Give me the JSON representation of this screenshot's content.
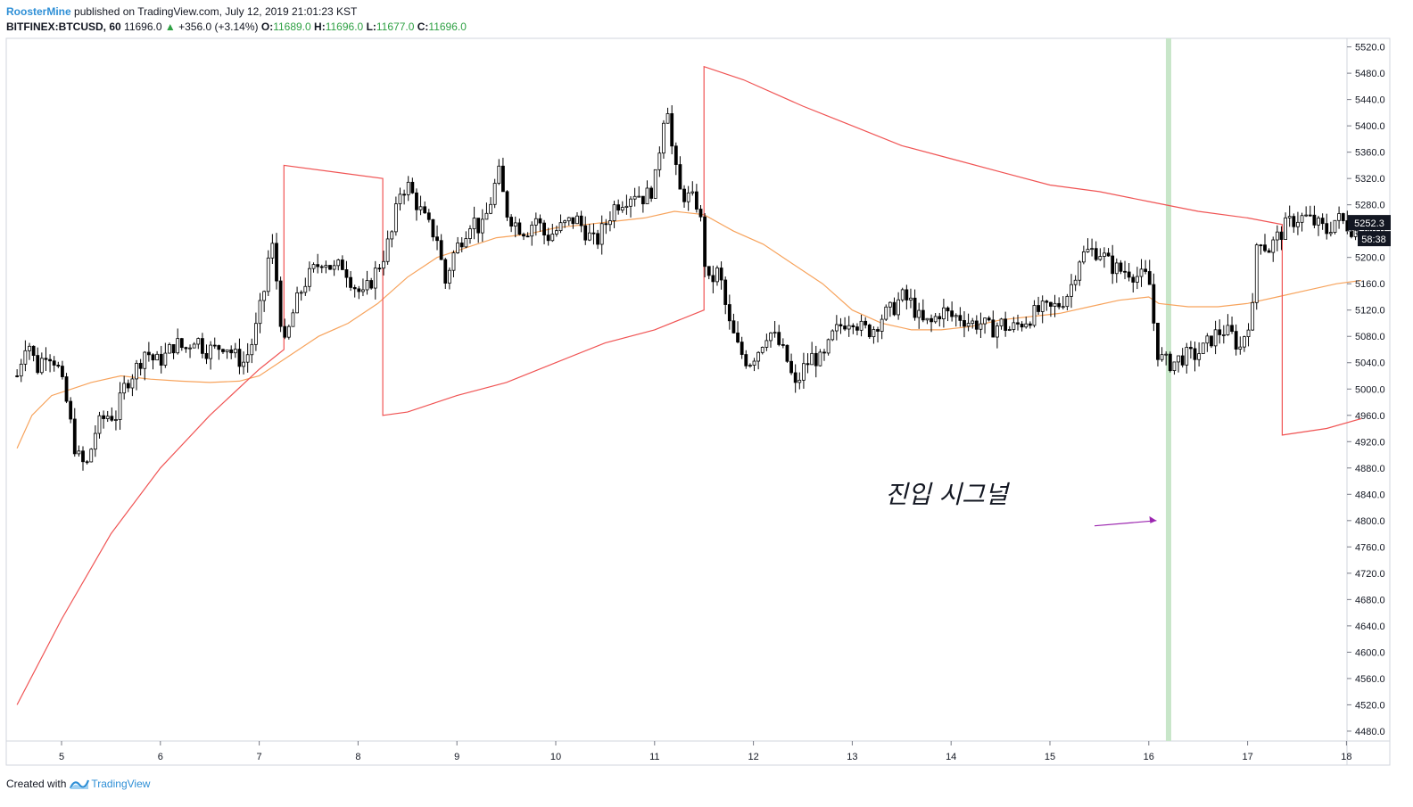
{
  "header": {
    "author": "RoosterMine",
    "published_text": "published on TradingView.com, July 12, 2019 21:01:23 KST",
    "symbol": "BITFINEX:BTCUSD, 60",
    "last": "11696.0",
    "change_arrow": "▲",
    "change": "+356.0 (+3.14%)",
    "o_label": "O:",
    "o_value": "11689.0",
    "h_label": "H:",
    "h_value": "11696.0",
    "l_label": "L:",
    "l_value": "11677.0",
    "c_label": "C:",
    "c_value": "11696.0"
  },
  "footer": {
    "created_with": "Created with",
    "brand": "TradingView",
    "brand_icon": "tradingview-logo-icon"
  },
  "annotation": {
    "text": "진입 시그널",
    "arrow_color": "#9c27b0"
  },
  "colors": {
    "up_candle": "#ffffff",
    "down_candle": "#000000",
    "wick": "#000000",
    "ma_line": "#f7a35c",
    "envelope_line": "#f05454",
    "highlight": "#c8e6c9",
    "grid_border": "#d1d4dc",
    "label_bg": "#131722"
  },
  "chart_data": {
    "type": "candlestick",
    "x_tick_labels": [
      "5",
      "6",
      "7",
      "8",
      "9",
      "10",
      "11",
      "12",
      "13",
      "14",
      "15",
      "16",
      "17",
      "18"
    ],
    "y_ticks": [
      4480,
      4520,
      4560,
      4600,
      4640,
      4680,
      4720,
      4760,
      4800,
      4840,
      4880,
      4920,
      4960,
      5000,
      5040,
      5080,
      5120,
      5160,
      5200,
      5240,
      5280,
      5320,
      5360,
      5400,
      5440,
      5480,
      5520
    ],
    "ylim": [
      4465,
      5533
    ],
    "price_label": "5252.3",
    "countdown_label": "58:38",
    "highlight_x": 16.2,
    "close_path": [
      [
        4.55,
        5020
      ],
      [
        4.65,
        5080
      ],
      [
        4.75,
        5030
      ],
      [
        4.85,
        5060
      ],
      [
        4.95,
        5040
      ],
      [
        5.05,
        4980
      ],
      [
        5.15,
        4900
      ],
      [
        5.25,
        4880
      ],
      [
        5.35,
        4940
      ],
      [
        5.45,
        4960
      ],
      [
        5.55,
        4960
      ],
      [
        5.65,
        5010
      ],
      [
        5.75,
        5030
      ],
      [
        5.85,
        5060
      ],
      [
        5.95,
        5040
      ],
      [
        6.05,
        5050
      ],
      [
        6.15,
        5070
      ],
      [
        6.25,
        5060
      ],
      [
        6.35,
        5080
      ],
      [
        6.45,
        5060
      ],
      [
        6.55,
        5060
      ],
      [
        6.65,
        5070
      ],
      [
        6.75,
        5050
      ],
      [
        6.85,
        5040
      ],
      [
        6.95,
        5080
      ],
      [
        7.05,
        5150
      ],
      [
        7.12,
        5230
      ],
      [
        7.18,
        5160
      ],
      [
        7.25,
        5060
      ],
      [
        7.35,
        5120
      ],
      [
        7.45,
        5160
      ],
      [
        7.55,
        5180
      ],
      [
        7.65,
        5200
      ],
      [
        7.75,
        5180
      ],
      [
        7.85,
        5190
      ],
      [
        7.95,
        5160
      ],
      [
        8.05,
        5140
      ],
      [
        8.15,
        5170
      ],
      [
        8.25,
        5200
      ],
      [
        8.35,
        5240
      ],
      [
        8.42,
        5300
      ],
      [
        8.5,
        5310
      ],
      [
        8.6,
        5280
      ],
      [
        8.7,
        5250
      ],
      [
        8.8,
        5230
      ],
      [
        8.88,
        5160
      ],
      [
        8.95,
        5200
      ],
      [
        9.05,
        5230
      ],
      [
        9.15,
        5260
      ],
      [
        9.25,
        5240
      ],
      [
        9.35,
        5290
      ],
      [
        9.42,
        5330
      ],
      [
        9.5,
        5270
      ],
      [
        9.6,
        5250
      ],
      [
        9.7,
        5240
      ],
      [
        9.8,
        5260
      ],
      [
        9.9,
        5230
      ],
      [
        10.0,
        5240
      ],
      [
        10.1,
        5250
      ],
      [
        10.2,
        5260
      ],
      [
        10.3,
        5240
      ],
      [
        10.4,
        5220
      ],
      [
        10.5,
        5250
      ],
      [
        10.6,
        5280
      ],
      [
        10.7,
        5290
      ],
      [
        10.8,
        5300
      ],
      [
        10.9,
        5290
      ],
      [
        11.0,
        5310
      ],
      [
        11.08,
        5400
      ],
      [
        11.12,
        5450
      ],
      [
        11.18,
        5360
      ],
      [
        11.25,
        5300
      ],
      [
        11.35,
        5290
      ],
      [
        11.45,
        5280
      ],
      [
        11.5,
        5200
      ],
      [
        11.55,
        5160
      ],
      [
        11.65,
        5180
      ],
      [
        11.75,
        5100
      ],
      [
        11.85,
        5060
      ],
      [
        11.95,
        5040
      ],
      [
        12.05,
        5060
      ],
      [
        12.15,
        5090
      ],
      [
        12.25,
        5070
      ],
      [
        12.35,
        5040
      ],
      [
        12.42,
        5000
      ],
      [
        12.5,
        5030
      ],
      [
        12.6,
        5050
      ],
      [
        12.7,
        5040
      ],
      [
        12.8,
        5080
      ],
      [
        12.9,
        5100
      ],
      [
        13.0,
        5110
      ],
      [
        13.1,
        5090
      ],
      [
        13.2,
        5090
      ],
      [
        13.3,
        5110
      ],
      [
        13.4,
        5120
      ],
      [
        13.5,
        5140
      ],
      [
        13.6,
        5130
      ],
      [
        13.7,
        5100
      ],
      [
        13.8,
        5100
      ],
      [
        13.9,
        5120
      ],
      [
        14.0,
        5110
      ],
      [
        14.1,
        5110
      ],
      [
        14.2,
        5100
      ],
      [
        14.3,
        5100
      ],
      [
        14.4,
        5090
      ],
      [
        14.5,
        5100
      ],
      [
        14.6,
        5090
      ],
      [
        14.7,
        5100
      ],
      [
        14.8,
        5110
      ],
      [
        14.9,
        5120
      ],
      [
        15.0,
        5120
      ],
      [
        15.1,
        5130
      ],
      [
        15.2,
        5150
      ],
      [
        15.3,
        5200
      ],
      [
        15.4,
        5210
      ],
      [
        15.5,
        5210
      ],
      [
        15.6,
        5190
      ],
      [
        15.7,
        5180
      ],
      [
        15.8,
        5180
      ],
      [
        15.9,
        5170
      ],
      [
        16.0,
        5170
      ],
      [
        16.08,
        5060
      ],
      [
        16.15,
        5040
      ],
      [
        16.25,
        5040
      ],
      [
        16.35,
        5050
      ],
      [
        16.45,
        5050
      ],
      [
        16.55,
        5060
      ],
      [
        16.65,
        5080
      ],
      [
        16.75,
        5090
      ],
      [
        16.85,
        5080
      ],
      [
        16.92,
        5060
      ],
      [
        17.0,
        5100
      ],
      [
        17.05,
        5120
      ],
      [
        17.1,
        5240
      ],
      [
        17.2,
        5210
      ],
      [
        17.3,
        5230
      ],
      [
        17.4,
        5250
      ],
      [
        17.5,
        5260
      ],
      [
        17.6,
        5260
      ],
      [
        17.7,
        5250
      ],
      [
        17.8,
        5240
      ],
      [
        17.9,
        5260
      ],
      [
        18.0,
        5250
      ],
      [
        18.1,
        5240
      ]
    ],
    "series": [
      {
        "name": "",
        "style": "ma",
        "points": [
          [
            4.55,
            4910
          ],
          [
            4.7,
            4960
          ],
          [
            4.9,
            4990
          ],
          [
            5.1,
            5000
          ],
          [
            5.3,
            5010
          ],
          [
            5.6,
            5020
          ],
          [
            5.9,
            5015
          ],
          [
            6.2,
            5012
          ],
          [
            6.5,
            5010
          ],
          [
            6.8,
            5012
          ],
          [
            7.0,
            5020
          ],
          [
            7.3,
            5050
          ],
          [
            7.6,
            5080
          ],
          [
            7.9,
            5100
          ],
          [
            8.2,
            5130
          ],
          [
            8.5,
            5170
          ],
          [
            8.8,
            5200
          ],
          [
            9.1,
            5215
          ],
          [
            9.4,
            5230
          ],
          [
            9.7,
            5235
          ],
          [
            10.0,
            5245
          ],
          [
            10.3,
            5250
          ],
          [
            10.6,
            5255
          ],
          [
            10.9,
            5260
          ],
          [
            11.2,
            5270
          ],
          [
            11.5,
            5265
          ],
          [
            11.8,
            5240
          ],
          [
            12.1,
            5220
          ],
          [
            12.4,
            5190
          ],
          [
            12.7,
            5160
          ],
          [
            13.0,
            5120
          ],
          [
            13.3,
            5100
          ],
          [
            13.6,
            5090
          ],
          [
            13.9,
            5090
          ],
          [
            14.2,
            5095
          ],
          [
            14.5,
            5105
          ],
          [
            14.8,
            5110
          ],
          [
            15.1,
            5115
          ],
          [
            15.4,
            5125
          ],
          [
            15.7,
            5135
          ],
          [
            16.0,
            5140
          ],
          [
            16.1,
            5130
          ],
          [
            16.4,
            5125
          ],
          [
            16.7,
            5125
          ],
          [
            17.0,
            5130
          ],
          [
            17.3,
            5140
          ],
          [
            17.6,
            5150
          ],
          [
            17.9,
            5160
          ],
          [
            18.15,
            5165
          ]
        ]
      },
      {
        "name": "",
        "style": "envelope",
        "points": [
          [
            4.55,
            4520
          ],
          [
            5.0,
            4650
          ],
          [
            5.5,
            4780
          ],
          [
            6.0,
            4880
          ],
          [
            6.5,
            4960
          ],
          [
            7.0,
            5030
          ],
          [
            7.25,
            5060
          ],
          [
            7.25,
            5340
          ],
          [
            8.25,
            5320
          ],
          [
            8.25,
            4960
          ],
          [
            8.5,
            4965
          ],
          [
            9.0,
            4990
          ],
          [
            9.5,
            5010
          ],
          [
            10.0,
            5040
          ],
          [
            10.5,
            5070
          ],
          [
            11.0,
            5090
          ],
          [
            11.5,
            5120
          ],
          [
            11.5,
            5490
          ],
          [
            11.9,
            5470
          ],
          [
            12.5,
            5430
          ],
          [
            13.0,
            5400
          ],
          [
            13.5,
            5370
          ],
          [
            14.0,
            5350
          ],
          [
            14.5,
            5330
          ],
          [
            15.0,
            5310
          ],
          [
            15.5,
            5300
          ],
          [
            16.0,
            5285
          ],
          [
            16.5,
            5270
          ],
          [
            17.0,
            5260
          ],
          [
            17.35,
            5250
          ],
          [
            17.35,
            4930
          ],
          [
            17.8,
            4940
          ],
          [
            18.15,
            4955
          ]
        ]
      }
    ],
    "annotation_arrow": {
      "from": [
        15.0,
        4830
      ],
      "to": [
        16.15,
        4800
      ]
    }
  }
}
